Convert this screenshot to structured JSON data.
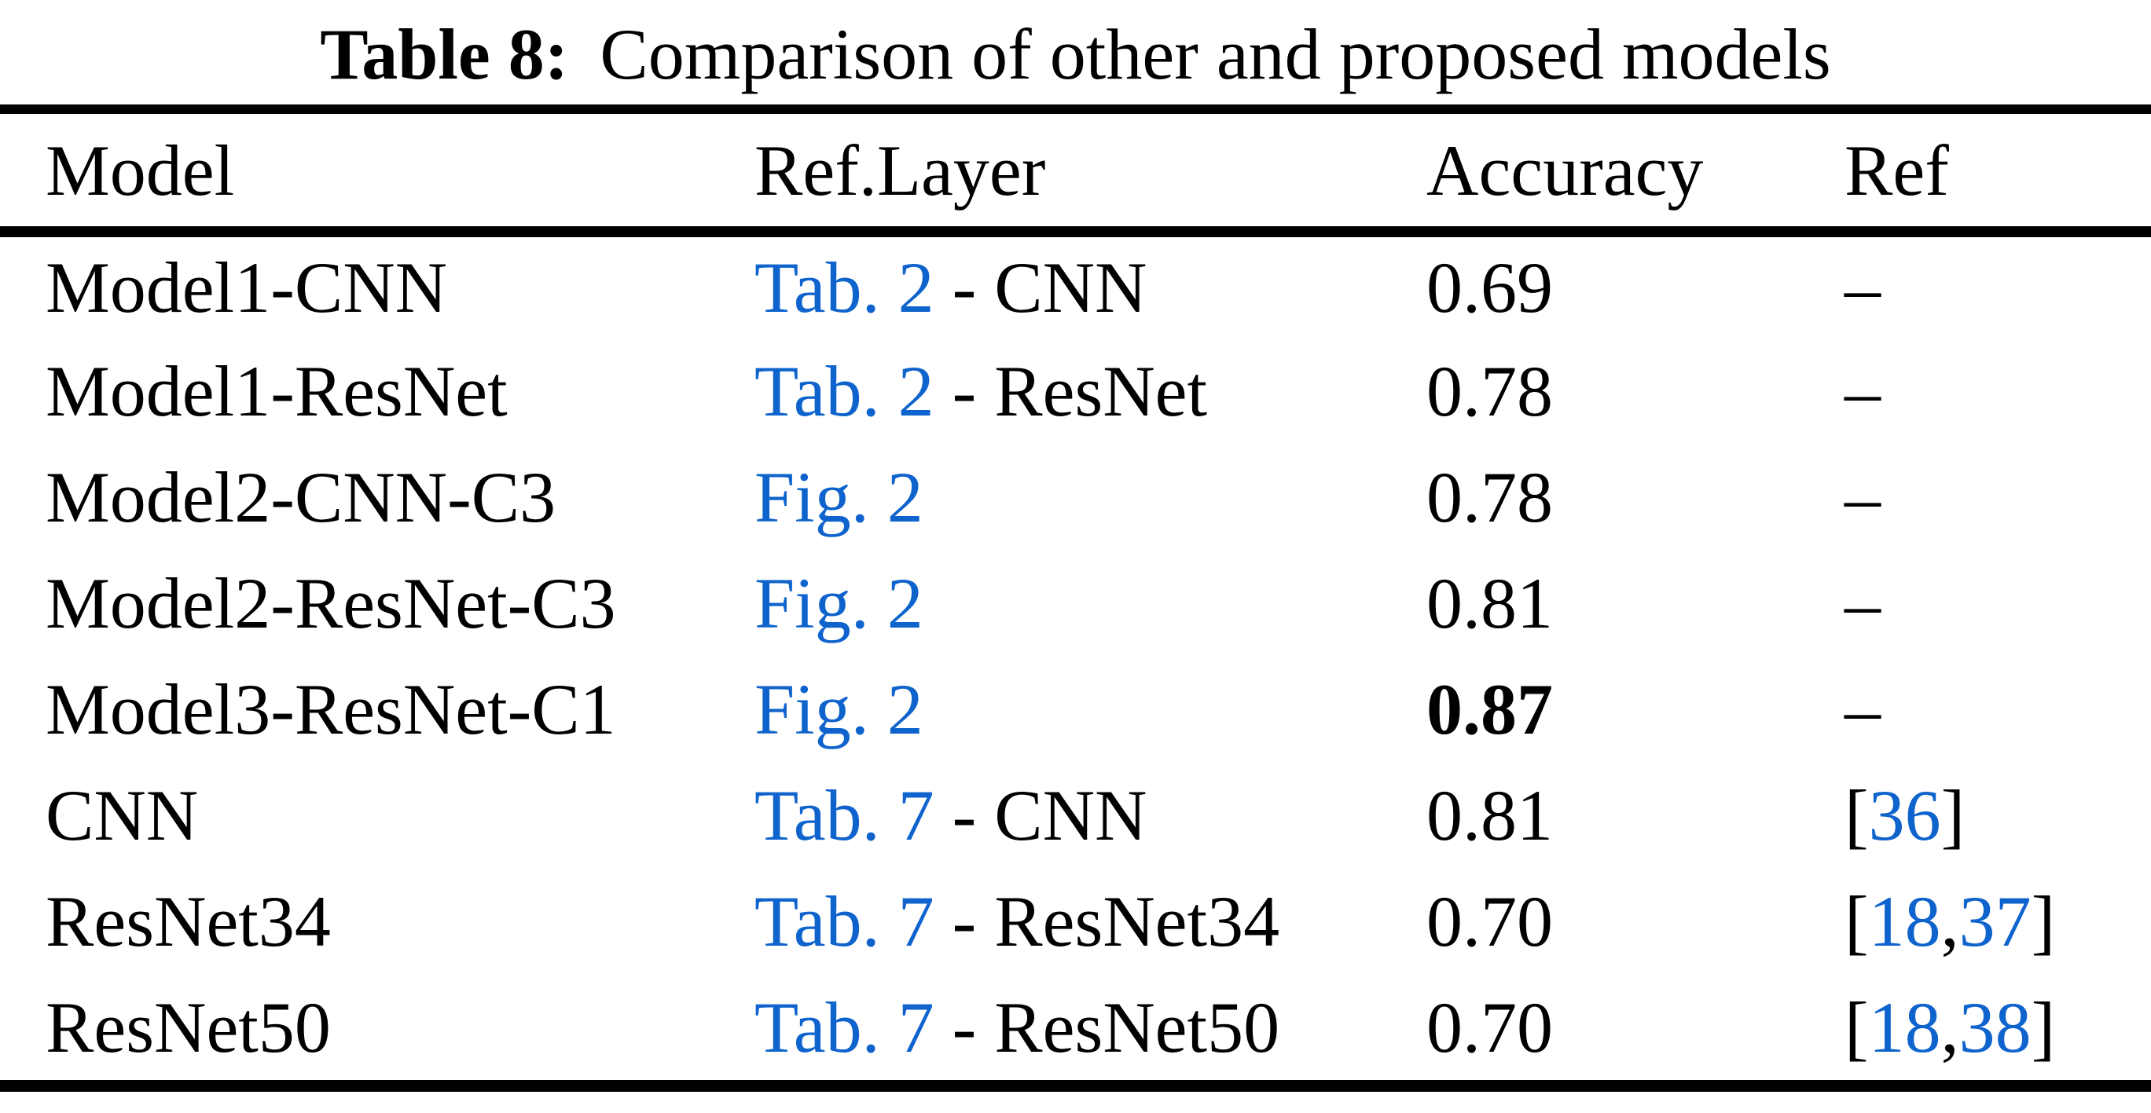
{
  "title": {
    "prefix": "Table 8:",
    "text": "Comparison of other and proposed models"
  },
  "colors": {
    "link": "#0E63CC",
    "text": "#000000",
    "rule": "#000000",
    "background": "#FFFFFF"
  },
  "table": {
    "headers": [
      {
        "key": "model",
        "label": "Model"
      },
      {
        "key": "ref-layer",
        "label": "Ref.Layer"
      },
      {
        "key": "accuracy",
        "label": "Accuracy"
      },
      {
        "key": "ref",
        "label": "Ref"
      }
    ],
    "rows": [
      {
        "model": "Model1-CNN",
        "ref_layer": [
          {
            "text": "Tab. 2",
            "link": true
          },
          {
            "text": " - CNN",
            "link": false
          }
        ],
        "accuracy": {
          "text": "0.69",
          "bold": false
        },
        "ref": [
          {
            "text": "–",
            "link": false
          }
        ]
      },
      {
        "model": "Model1-ResNet",
        "ref_layer": [
          {
            "text": "Tab. 2",
            "link": true
          },
          {
            "text": " - ResNet",
            "link": false
          }
        ],
        "accuracy": {
          "text": "0.78",
          "bold": false
        },
        "ref": [
          {
            "text": "–",
            "link": false
          }
        ]
      },
      {
        "model": "Model2-CNN-C3",
        "ref_layer": [
          {
            "text": "Fig. 2",
            "link": true
          }
        ],
        "accuracy": {
          "text": "0.78",
          "bold": false
        },
        "ref": [
          {
            "text": "–",
            "link": false
          }
        ]
      },
      {
        "model": "Model2-ResNet-C3",
        "ref_layer": [
          {
            "text": "Fig. 2",
            "link": true
          }
        ],
        "accuracy": {
          "text": "0.81",
          "bold": false
        },
        "ref": [
          {
            "text": "–",
            "link": false
          }
        ]
      },
      {
        "model": "Model3-ResNet-C1",
        "ref_layer": [
          {
            "text": "Fig. 2",
            "link": true
          }
        ],
        "accuracy": {
          "text": "0.87",
          "bold": true
        },
        "ref": [
          {
            "text": "–",
            "link": false
          }
        ]
      },
      {
        "model": "CNN",
        "ref_layer": [
          {
            "text": "Tab. 7",
            "link": true
          },
          {
            "text": " - CNN",
            "link": false
          }
        ],
        "accuracy": {
          "text": "0.81",
          "bold": false
        },
        "ref": [
          {
            "text": "[",
            "link": false
          },
          {
            "text": "36",
            "link": true
          },
          {
            "text": "]",
            "link": false
          }
        ]
      },
      {
        "model": "ResNet34",
        "ref_layer": [
          {
            "text": "Tab. 7",
            "link": true
          },
          {
            "text": " - ResNet34",
            "link": false
          }
        ],
        "accuracy": {
          "text": "0.70",
          "bold": false
        },
        "ref": [
          {
            "text": "[",
            "link": false
          },
          {
            "text": "18",
            "link": true
          },
          {
            "text": ",",
            "link": false
          },
          {
            "text": "37",
            "link": true
          },
          {
            "text": "]",
            "link": false
          }
        ]
      },
      {
        "model": "ResNet50",
        "ref_layer": [
          {
            "text": "Tab. 7",
            "link": true
          },
          {
            "text": " - ResNet50",
            "link": false
          }
        ],
        "accuracy": {
          "text": "0.70",
          "bold": false
        },
        "ref": [
          {
            "text": "[",
            "link": false
          },
          {
            "text": "18",
            "link": true
          },
          {
            "text": ",",
            "link": false
          },
          {
            "text": "38",
            "link": true
          },
          {
            "text": "]",
            "link": false
          }
        ]
      }
    ]
  }
}
